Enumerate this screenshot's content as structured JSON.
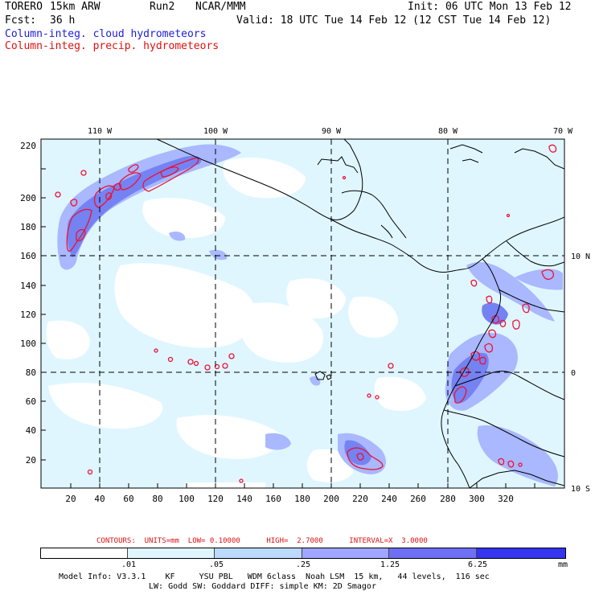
{
  "header": {
    "model": "TORERO",
    "resolution": "15km ARW",
    "run": "Run2",
    "org": "NCAR/MMM",
    "init": "Init: 06 UTC Mon 13 Feb 12",
    "fcst_label": "Fcst:",
    "fcst_value": "36 h",
    "valid": "Valid: 18 UTC Tue 14 Feb 12 (12 CST Tue 14 Feb 12)"
  },
  "legend": {
    "cloud": "Column-integ. cloud hydrometeors",
    "precip": "Column-integ. precip. hydrometeors"
  },
  "map": {
    "lon_labels": [
      "110 W",
      "100 W",
      "90 W",
      "80 W",
      "70 W"
    ],
    "lat_labels": [
      "10 N",
      "0",
      "10 S"
    ],
    "x_ticks": [
      "20",
      "40",
      "60",
      "80",
      "100",
      "120",
      "140",
      "160",
      "180",
      "200",
      "220",
      "240",
      "260",
      "280",
      "300",
      "320"
    ],
    "y_ticks": [
      "20",
      "40",
      "60",
      "80",
      "100",
      "120",
      "140",
      "160",
      "180",
      "200",
      "220"
    ],
    "colors": {
      "cloud_light": "#dff6ff",
      "cloud_mid": "#9fb3ff",
      "cloud_dark": "#6f7cf0",
      "precip": "#ee1133",
      "coast": "#000000"
    }
  },
  "contours": {
    "info": "CONTOURS:  UNITS=mm  LOW= 0.10000      HIGH=  2.7000      INTERVAL=X  3.0000"
  },
  "colorbar": {
    "labels": [
      ".01",
      ".05",
      ".25",
      "1.25",
      "6.25"
    ],
    "unit": "mm",
    "colors": [
      "#ffffff",
      "#dff6ff",
      "#bcd9ff",
      "#9fa6ff",
      "#6f6ff5",
      "#3535f0"
    ]
  },
  "footer": {
    "line1": "Model Info: V3.3.1    KF     YSU PBL   WDM 6class  Noah LSM  15 km,   44 levels,  116 sec",
    "line2": "LW: Godd SW: Goddard DIFF: simple KM: 2D Smagor"
  }
}
